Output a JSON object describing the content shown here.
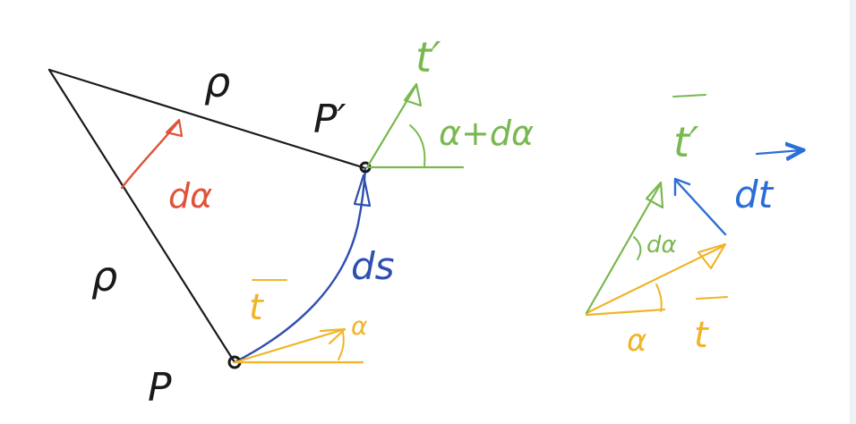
{
  "colors": {
    "ink": "#1a1a1a",
    "red": "#e0533a",
    "blue": "#2f4fb0",
    "blue_light": "#2b6fd6",
    "green": "#79b84f",
    "yellow": "#f0b428"
  },
  "left_figure": {
    "rho_top": "ρ",
    "rho_left": "ρ",
    "point_p": "P",
    "point_p_prime": "P′",
    "angle_d_alpha": "dα",
    "arc_ds": "ds",
    "tangent_t": "t",
    "tangent_t_prime": "t′",
    "angle_alpha": "α",
    "angle_alpha_plus_dalpha": "α+dα"
  },
  "right_figure": {
    "vector_t_prime": "t′",
    "vector_dt": "dt",
    "angle_d_alpha": "dα",
    "vector_t": "t",
    "angle_alpha": "α"
  }
}
